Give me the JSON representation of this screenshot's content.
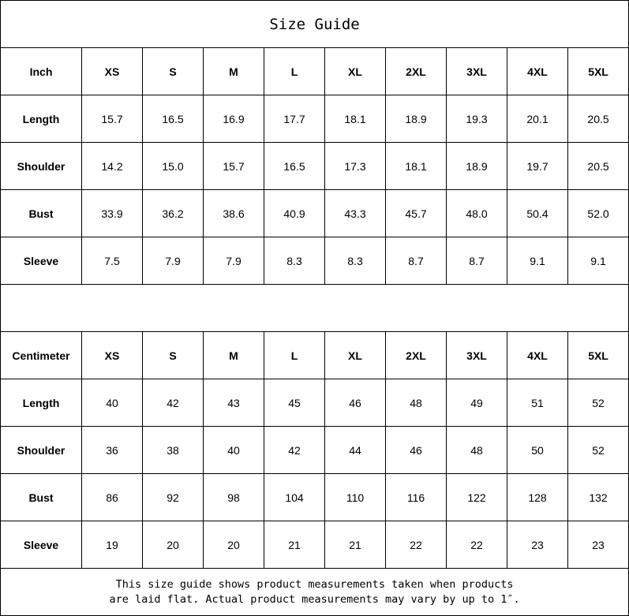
{
  "title": "Size Guide",
  "sizes": [
    "XS",
    "S",
    "M",
    "L",
    "XL",
    "2XL",
    "3XL",
    "4XL",
    "5XL"
  ],
  "tables": [
    {
      "unit": "Inch",
      "rows": [
        {
          "label": "Length",
          "values": [
            "15.7",
            "16.5",
            "16.9",
            "17.7",
            "18.1",
            "18.9",
            "19.3",
            "20.1",
            "20.5"
          ]
        },
        {
          "label": "Shoulder",
          "values": [
            "14.2",
            "15.0",
            "15.7",
            "16.5",
            "17.3",
            "18.1",
            "18.9",
            "19.7",
            "20.5"
          ]
        },
        {
          "label": "Bust",
          "values": [
            "33.9",
            "36.2",
            "38.6",
            "40.9",
            "43.3",
            "45.7",
            "48.0",
            "50.4",
            "52.0"
          ]
        },
        {
          "label": "Sleeve",
          "values": [
            "7.5",
            "7.9",
            "7.9",
            "8.3",
            "8.3",
            "8.7",
            "8.7",
            "9.1",
            "9.1"
          ]
        }
      ]
    },
    {
      "unit": "Centimeter",
      "rows": [
        {
          "label": "Length",
          "values": [
            "40",
            "42",
            "43",
            "45",
            "46",
            "48",
            "49",
            "51",
            "52"
          ]
        },
        {
          "label": "Shoulder",
          "values": [
            "36",
            "38",
            "40",
            "42",
            "44",
            "46",
            "48",
            "50",
            "52"
          ]
        },
        {
          "label": "Bust",
          "values": [
            "86",
            "92",
            "98",
            "104",
            "110",
            "116",
            "122",
            "128",
            "132"
          ]
        },
        {
          "label": "Sleeve",
          "values": [
            "19",
            "20",
            "20",
            "21",
            "21",
            "22",
            "22",
            "23",
            "23"
          ]
        }
      ]
    }
  ],
  "footer": {
    "line1": "This size guide shows product measurements taken when products",
    "line2": "are laid flat. Actual product measurements may vary by up to 1″."
  }
}
